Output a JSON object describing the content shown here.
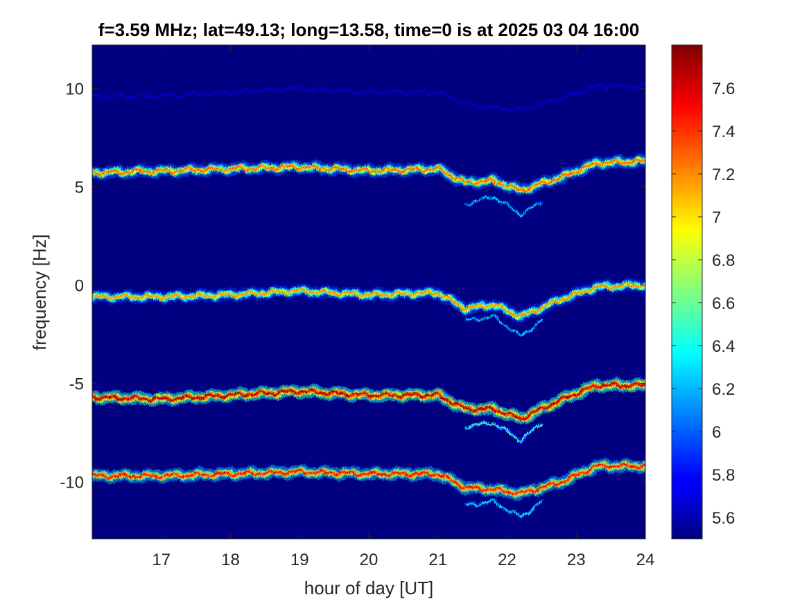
{
  "chart_data": {
    "type": "heatmap",
    "title": "f=3.59 MHz;  lat=49.13; long=13.58, time=0 is at 2025 03 04 16:00",
    "xlabel": "hour of day [UT]",
    "ylabel": "frequency [Hz]",
    "xlim": [
      16,
      24
    ],
    "ylim": [
      -12.9,
      12.2
    ],
    "x_ticks": [
      "17",
      "18",
      "19",
      "20",
      "21",
      "22",
      "23",
      "24"
    ],
    "y_ticks": [
      "10",
      "5",
      "0",
      "-5",
      "-10"
    ],
    "colorbar": {
      "limits": [
        5.5,
        7.8
      ],
      "colormap": "jet",
      "ticks": [
        "5.6",
        "5.8",
        "6",
        "6.2",
        "6.4",
        "6.6",
        "6.8",
        "7",
        "7.2",
        "7.4",
        "7.6"
      ]
    },
    "background_value": 5.5,
    "traces": [
      {
        "strength": 5.7,
        "secondary": false,
        "t": [
          16.0,
          17.0,
          18.0,
          19.0,
          20.0,
          21.0,
          21.5,
          22.2,
          22.8,
          23.3,
          24.0
        ],
        "f": [
          9.6,
          9.6,
          9.8,
          10.0,
          9.8,
          9.8,
          9.1,
          8.9,
          9.5,
          10.1,
          10.1
        ]
      },
      {
        "strength": 7.3,
        "secondary": false,
        "t": [
          16.0,
          17.0,
          18.0,
          19.0,
          20.0,
          21.0,
          21.4,
          21.8,
          22.2,
          22.8,
          23.3,
          24.0
        ],
        "f": [
          5.7,
          5.8,
          5.9,
          6.0,
          5.8,
          5.9,
          5.2,
          5.3,
          4.8,
          5.5,
          6.2,
          6.3
        ]
      },
      {
        "strength": 6.3,
        "secondary": true,
        "t": [
          21.4,
          21.8,
          22.2,
          22.5
        ],
        "f": [
          4.1,
          4.5,
          3.6,
          4.2
        ]
      },
      {
        "strength": 7.2,
        "secondary": false,
        "t": [
          16.0,
          17.0,
          18.0,
          19.0,
          20.0,
          21.0,
          21.4,
          21.8,
          22.2,
          22.8,
          23.3,
          24.0
        ],
        "f": [
          -0.6,
          -0.6,
          -0.5,
          -0.3,
          -0.5,
          -0.4,
          -1.2,
          -1.0,
          -1.6,
          -0.7,
          -0.1,
          0.0
        ]
      },
      {
        "strength": 6.3,
        "secondary": true,
        "t": [
          21.4,
          21.8,
          22.2,
          22.5
        ],
        "f": [
          -1.8,
          -1.6,
          -2.6,
          -1.8
        ]
      },
      {
        "strength": 7.7,
        "secondary": false,
        "t": [
          16.0,
          17.0,
          18.0,
          19.0,
          20.0,
          21.0,
          21.4,
          21.8,
          22.2,
          22.8,
          23.3,
          24.0
        ],
        "f": [
          -5.7,
          -5.8,
          -5.6,
          -5.4,
          -5.6,
          -5.6,
          -6.3,
          -6.3,
          -6.8,
          -5.8,
          -5.1,
          -5.1
        ]
      },
      {
        "strength": 6.6,
        "secondary": true,
        "t": [
          21.4,
          21.8,
          22.2,
          22.5
        ],
        "f": [
          -7.2,
          -7.0,
          -7.9,
          -7.0
        ]
      },
      {
        "strength": 7.5,
        "secondary": false,
        "t": [
          16.0,
          17.0,
          18.0,
          19.0,
          20.0,
          21.0,
          21.4,
          21.8,
          22.2,
          22.8,
          23.3,
          24.0
        ],
        "f": [
          -9.7,
          -9.7,
          -9.6,
          -9.5,
          -9.6,
          -9.6,
          -10.3,
          -10.4,
          -10.6,
          -10.0,
          -9.2,
          -9.2
        ]
      },
      {
        "strength": 6.4,
        "secondary": true,
        "t": [
          21.4,
          21.8,
          22.2,
          22.5
        ],
        "f": [
          -11.2,
          -11.0,
          -11.8,
          -11.0
        ]
      }
    ]
  },
  "colors": {
    "background": "#000080",
    "axis": "#262626"
  }
}
